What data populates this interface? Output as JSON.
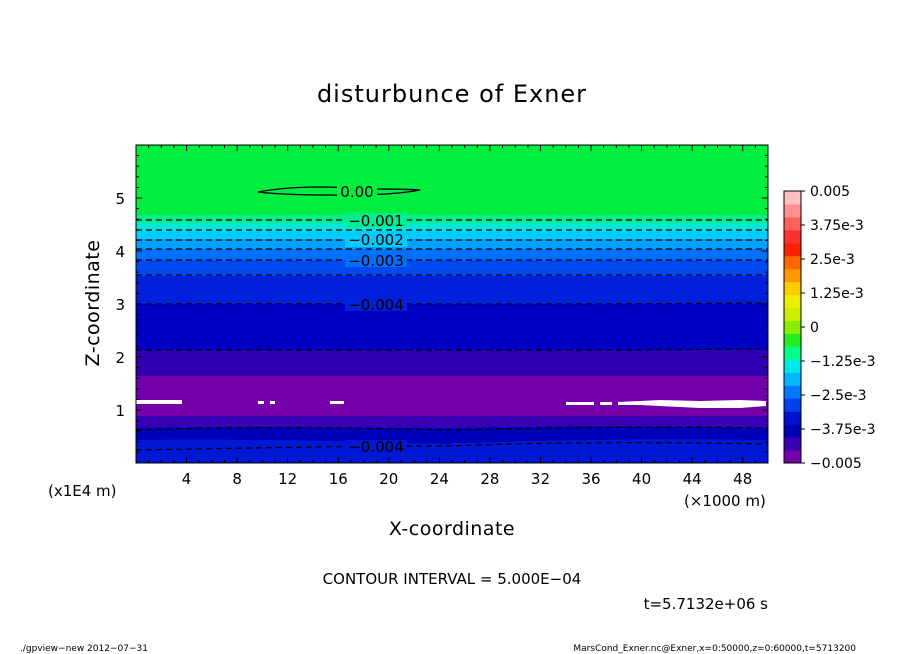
{
  "chart_data": {
    "type": "heatmap",
    "title": "disturbunce of Exner",
    "xlabel": "X-coordinate",
    "ylabel": "Z-coordinate",
    "x_unit_label": "(×1000 m)",
    "y_unit_label": "(x1E4 m)",
    "xlim": [
      0,
      50
    ],
    "ylim": [
      0,
      6
    ],
    "x_ticks": [
      4,
      8,
      12,
      16,
      20,
      24,
      28,
      32,
      36,
      40,
      44,
      48
    ],
    "y_ticks": [
      1,
      2,
      3,
      4,
      5
    ],
    "grid": false,
    "colorbar": {
      "placement": "right",
      "vmin": -0.005,
      "vmax": 0.005,
      "tick_labels": [
        "0.005",
        "3.75e-3",
        "2.5e-3",
        "1.25e-3",
        "0",
        "−1.25e-3",
        "−2.5e-3",
        "−3.75e-3",
        "−0.005"
      ],
      "colors": [
        "#7700a8",
        "#3a00b4",
        "#0000b4",
        "#0012d0",
        "#0040f0",
        "#0078ff",
        "#00b8ff",
        "#00e8e8",
        "#00ff88",
        "#22ee22",
        "#88ee00",
        "#ccee00",
        "#eeee00",
        "#ffcc00",
        "#ff9900",
        "#ff6600",
        "#ff2200",
        "#ff3030",
        "#ff6060",
        "#ff9090",
        "#ffc0c0"
      ]
    },
    "field_profile": {
      "description_z": [
        0.0,
        0.25,
        0.55,
        0.8,
        1.0,
        1.3,
        1.6,
        2.0,
        2.5,
        3.0,
        3.3,
        3.6,
        3.8,
        4.0,
        4.2,
        4.4,
        4.6,
        4.8,
        6.0
      ],
      "value": [
        -0.004,
        -0.0042,
        -0.0044,
        -0.0047,
        -0.0049,
        -0.005,
        -0.0048,
        -0.0046,
        -0.0044,
        -0.0041,
        -0.0039,
        -0.0036,
        -0.0033,
        -0.003,
        -0.0026,
        -0.0021,
        -0.0015,
        -0.0004,
        0.0
      ]
    },
    "contours": [
      {
        "label": "0.00",
        "z": 5.1,
        "x_range": [
          10,
          23
        ],
        "style": "solid"
      },
      {
        "label": "−0.001",
        "z": 4.55,
        "style": "dashed"
      },
      {
        "label": "−0.002",
        "z": 4.25,
        "style": "dashed"
      },
      {
        "label": "−0.003",
        "z": 3.8,
        "style": "dashed"
      },
      {
        "label": "−0.004",
        "z": 2.95,
        "style": "dashed"
      },
      {
        "label": "−0.004",
        "z": 0.3,
        "style": "dashed"
      }
    ]
  },
  "contour_interval_text": "CONTOUR INTERVAL = 5.000E−04",
  "time_text": "t=5.7132e+06 s",
  "footer_left": "./gpview−new   2012−07−31",
  "footer_right": "MarsCond_Exner.nc@Exner,x=0:50000,z=0:60000,t=5713200"
}
